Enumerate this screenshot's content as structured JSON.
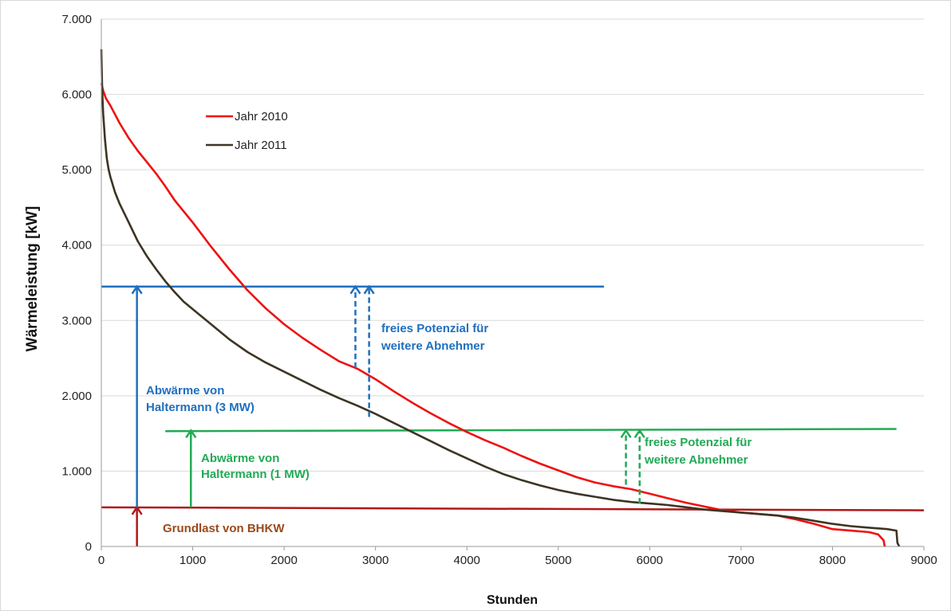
{
  "chart_data": {
    "type": "line",
    "xlabel": "Stunden",
    "ylabel": "Wärmeleistung [kW]",
    "xlim": [
      0,
      9000
    ],
    "ylim": [
      0,
      7000
    ],
    "x_ticks": [
      "0",
      "1000",
      "2000",
      "3000",
      "4000",
      "5000",
      "6000",
      "7000",
      "8000",
      "9000"
    ],
    "y_ticks": [
      "0",
      "1.000",
      "2.000",
      "3.000",
      "4.000",
      "5.000",
      "6.000",
      "7.000"
    ],
    "grid": "horizontal",
    "legend_position": "top-left",
    "series": [
      {
        "name": "Jahr 2010",
        "color": "#ee1111",
        "x": [
          0,
          20,
          50,
          100,
          200,
          300,
          400,
          500,
          600,
          700,
          800,
          900,
          1000,
          1200,
          1400,
          1600,
          1800,
          2000,
          2200,
          2400,
          2600,
          2800,
          3000,
          3200,
          3400,
          3600,
          3800,
          4000,
          4200,
          4400,
          4600,
          4800,
          5000,
          5200,
          5400,
          5600,
          5800,
          6000,
          6200,
          6400,
          6600,
          6800,
          7000,
          7200,
          7400,
          7600,
          7800,
          8000,
          8200,
          8400,
          8500,
          8560,
          8570,
          8580
        ],
        "values": [
          6150,
          6050,
          5950,
          5850,
          5620,
          5420,
          5250,
          5100,
          4950,
          4780,
          4600,
          4450,
          4300,
          3980,
          3680,
          3400,
          3160,
          2950,
          2770,
          2610,
          2460,
          2360,
          2220,
          2060,
          1910,
          1770,
          1640,
          1520,
          1410,
          1310,
          1200,
          1100,
          1010,
          920,
          850,
          800,
          760,
          700,
          640,
          580,
          530,
          480,
          450,
          430,
          410,
          360,
          300,
          230,
          210,
          190,
          160,
          80,
          10,
          0
        ]
      },
      {
        "name": "Jahr 2011",
        "color": "#3d3424",
        "x": [
          0,
          10,
          20,
          40,
          60,
          80,
          100,
          150,
          200,
          300,
          400,
          500,
          600,
          700,
          800,
          900,
          1000,
          1200,
          1400,
          1600,
          1800,
          2000,
          2200,
          2400,
          2600,
          2800,
          3000,
          3200,
          3400,
          3600,
          3800,
          4000,
          4200,
          4400,
          4600,
          4800,
          5000,
          5200,
          5400,
          5600,
          5800,
          6000,
          6200,
          6400,
          6600,
          6800,
          7000,
          7200,
          7400,
          7600,
          7800,
          8000,
          8200,
          8400,
          8600,
          8700,
          8710,
          8730
        ],
        "values": [
          6600,
          6050,
          5750,
          5400,
          5150,
          5000,
          4900,
          4700,
          4550,
          4300,
          4050,
          3850,
          3680,
          3520,
          3380,
          3250,
          3150,
          2950,
          2750,
          2580,
          2440,
          2320,
          2200,
          2080,
          1970,
          1870,
          1760,
          1640,
          1520,
          1400,
          1280,
          1170,
          1060,
          960,
          880,
          810,
          750,
          700,
          660,
          620,
          590,
          570,
          550,
          520,
          490,
          470,
          450,
          430,
          410,
          380,
          340,
          300,
          270,
          250,
          230,
          210,
          50,
          0
        ]
      }
    ],
    "reference_lines": [
      {
        "name": "Abwärme Haltermann 3 MW",
        "color": "#1f6fbf",
        "x": [
          0,
          5500
        ],
        "y": [
          3450,
          3450
        ]
      },
      {
        "name": "Abwärme Haltermann 1 MW",
        "color": "#22aa55",
        "x": [
          700,
          8700
        ],
        "y": [
          1530,
          1560
        ]
      },
      {
        "name": "Grundlast BHKW",
        "color": "#b01818",
        "x": [
          0,
          9000
        ],
        "y": [
          520,
          480
        ]
      }
    ],
    "arrows": [
      {
        "color": "#b01818",
        "x": 390,
        "y0": 0,
        "y1": 520,
        "dashed": false
      },
      {
        "color": "#1f6fbf",
        "x": 390,
        "y0": 520,
        "y1": 3450,
        "dashed": false
      },
      {
        "color": "#22aa55",
        "x": 980,
        "y0": 520,
        "y1": 1540,
        "dashed": false
      },
      {
        "color": "#1f6fbf",
        "x": 2780,
        "y0": 2370,
        "y1": 3450,
        "dashed": true
      },
      {
        "color": "#1f6fbf",
        "x": 2930,
        "y0": 1720,
        "y1": 3450,
        "dashed": true
      },
      {
        "color": "#22aa55",
        "x": 5740,
        "y0": 820,
        "y1": 1540,
        "dashed": true
      },
      {
        "color": "#22aa55",
        "x": 5890,
        "y0": 570,
        "y1": 1540,
        "dashed": true
      }
    ],
    "annotations": [
      {
        "key": "a3_line1",
        "text": "Abwärme von",
        "color": "#1f6fbf"
      },
      {
        "key": "a3_line2",
        "text": "Haltermann (3 MW)",
        "color": "#1f6fbf"
      },
      {
        "key": "fb_line1",
        "text": "freies Potenzial für",
        "color": "#1f6fbf"
      },
      {
        "key": "fb_line2",
        "text": "weitere Abnehmer",
        "color": "#1f6fbf"
      },
      {
        "key": "a1_line1",
        "text": "Abwärme von",
        "color": "#22aa55"
      },
      {
        "key": "a1_line2",
        "text": "Haltermann (1 MW)",
        "color": "#22aa55"
      },
      {
        "key": "fg_line1",
        "text": "freies Potenzial für",
        "color": "#22aa55"
      },
      {
        "key": "fg_line2",
        "text": "weitere Abnehmer",
        "color": "#22aa55"
      },
      {
        "key": "grund",
        "text": "Grundlast von BHKW",
        "color": "#9a4a1c"
      }
    ]
  }
}
